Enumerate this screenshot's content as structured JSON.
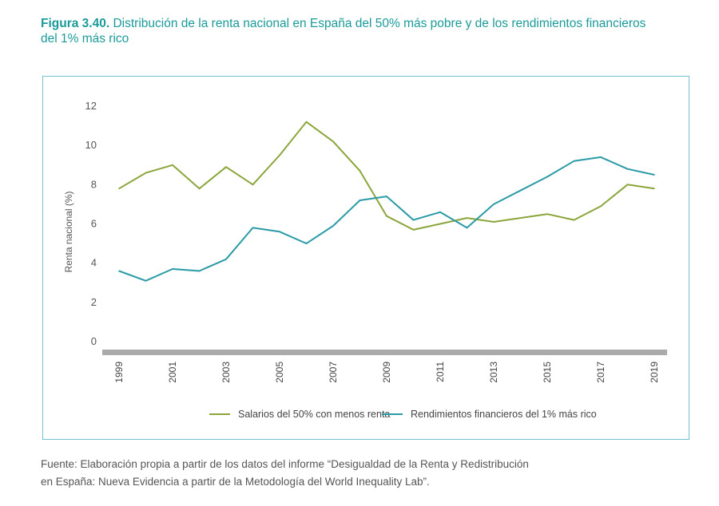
{
  "figure": {
    "label": "Figura 3.40.",
    "title": "Distribución de la renta nacional en España del 50% más pobre y de los rendimientos financieros del 1% más rico"
  },
  "source": {
    "line1": "Fuente: Elaboración propia a partir de los datos del informe “Desigualdad de la Renta y Redistribución",
    "line2": "en España: Nueva Evidencia a partir de la Metodología del World Inequality Lab”."
  },
  "colors": {
    "series1": "#8aa63a",
    "series2": "#2a9ba6",
    "axis": "#aaaaaa",
    "frame": "#6fc3cf",
    "title": "#1b9a9a"
  },
  "chart_data": {
    "type": "line",
    "title": "",
    "xlabel": "",
    "ylabel": "Renta nacional (%)",
    "ylim": [
      0,
      12
    ],
    "yticks": [
      0,
      2,
      4,
      6,
      8,
      10,
      12
    ],
    "x": [
      1999,
      2000,
      2001,
      2002,
      2003,
      2004,
      2005,
      2006,
      2007,
      2008,
      2009,
      2010,
      2011,
      2012,
      2013,
      2014,
      2015,
      2016,
      2017,
      2018,
      2019
    ],
    "xtick_labels": [
      "1999",
      "2001",
      "2003",
      "2005",
      "2007",
      "2009",
      "2011",
      "2013",
      "2015",
      "2017",
      "2019"
    ],
    "grid": false,
    "legend_position": "bottom",
    "series": [
      {
        "name": "Salarios del 50% con menos renta",
        "color": "#8aa63a",
        "values": [
          7.8,
          8.6,
          9.0,
          7.8,
          8.9,
          8.0,
          9.5,
          11.2,
          10.2,
          8.7,
          6.4,
          5.7,
          6.0,
          6.3,
          6.1,
          6.3,
          6.5,
          6.2,
          6.9,
          8.0,
          7.8
        ]
      },
      {
        "name": "Rendimientos financieros del 1% más rico",
        "color": "#2a9ba6",
        "values": [
          3.6,
          3.1,
          3.7,
          3.6,
          4.2,
          5.8,
          5.6,
          5.0,
          5.9,
          7.2,
          7.4,
          6.2,
          6.6,
          5.8,
          7.0,
          7.7,
          8.4,
          9.2,
          9.4,
          8.8,
          8.5
        ]
      }
    ]
  }
}
